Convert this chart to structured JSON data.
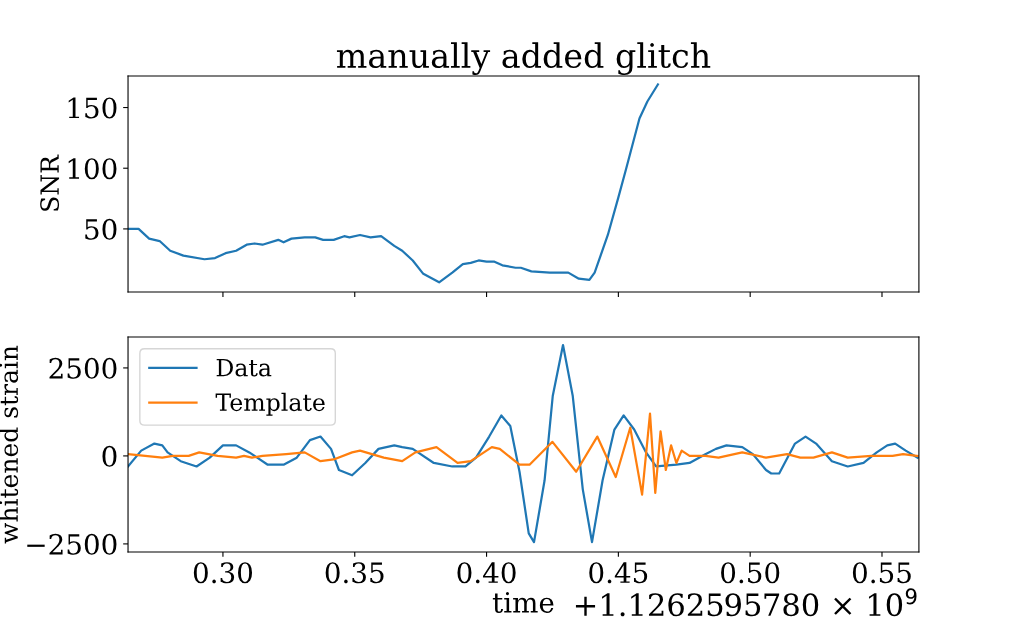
{
  "chart_data": [
    {
      "type": "line",
      "title": "manually added glitch",
      "ylabel": "SNR",
      "color": "#1f77b4",
      "x": [
        0.264,
        0.268,
        0.272,
        0.276,
        0.28,
        0.285,
        0.293,
        0.297,
        0.301,
        0.305,
        0.309,
        0.312,
        0.315,
        0.321,
        0.323,
        0.326,
        0.331,
        0.335,
        0.338,
        0.342,
        0.346,
        0.348,
        0.352,
        0.356,
        0.36,
        0.365,
        0.368,
        0.372,
        0.376,
        0.382,
        0.387,
        0.391,
        0.394,
        0.397,
        0.4,
        0.403,
        0.406,
        0.411,
        0.413,
        0.417,
        0.424,
        0.431,
        0.435,
        0.439,
        0.441,
        0.446,
        0.45,
        0.453,
        0.458,
        0.461,
        0.465
      ],
      "values": [
        50,
        50,
        42,
        40,
        32,
        28,
        25,
        26,
        30,
        32,
        37,
        38,
        37,
        41,
        39,
        42,
        43,
        43,
        41,
        41,
        44,
        43,
        45,
        43,
        44,
        36,
        32,
        24,
        13,
        6,
        14,
        21,
        22,
        24,
        23,
        23,
        20,
        18,
        18,
        15,
        14,
        14,
        9,
        8,
        14,
        45,
        76,
        100,
        141,
        155,
        169
      ],
      "xlim": [
        0.264,
        0.564
      ],
      "xticks": [
        0.3,
        0.35,
        0.4,
        0.45,
        0.5,
        0.55
      ],
      "ylim": [
        -2,
        176
      ],
      "yticks": [
        50,
        100,
        150
      ],
      "tick_labels": "y",
      "grid": false,
      "legend": false
    },
    {
      "type": "line",
      "xlabel": "time",
      "ylabel": "whitened strain",
      "legend": "top left",
      "grid": false,
      "xlim": [
        0.264,
        0.564
      ],
      "xticks": [
        {
          "value": 0.3,
          "label": "0.30"
        },
        {
          "value": 0.35,
          "label": "0.35"
        },
        {
          "value": 0.4,
          "label": "0.40"
        },
        {
          "value": 0.45,
          "label": "0.45"
        },
        {
          "value": 0.5,
          "label": "0.50"
        },
        {
          "value": 0.55,
          "label": "0.55"
        }
      ],
      "ylim": [
        -2730,
        3380
      ],
      "yticks": [
        {
          "value": -2500,
          "label": "−2500"
        },
        0,
        2500
      ],
      "annotations": [
        "+1.1262595780 × 10$^{9}$"
      ],
      "series": [
        {
          "name": "Data",
          "color": "#1f77b4",
          "x": [
            0.264,
            0.269,
            0.274,
            0.277,
            0.279,
            0.284,
            0.29,
            0.295,
            0.3,
            0.305,
            0.31,
            0.317,
            0.323,
            0.328,
            0.333,
            0.337,
            0.341,
            0.344,
            0.349,
            0.354,
            0.359,
            0.365,
            0.368,
            0.372,
            0.38,
            0.387,
            0.392,
            0.396,
            0.401,
            0.4056,
            0.409,
            0.4125,
            0.416,
            0.418,
            0.422,
            0.4251,
            0.429,
            0.4327,
            0.4365,
            0.44,
            0.444,
            0.4485,
            0.452,
            0.456,
            0.4605,
            0.4643,
            0.472,
            0.477,
            0.483,
            0.487,
            0.491,
            0.497,
            0.501,
            0.506,
            0.508,
            0.511,
            0.517,
            0.521,
            0.525,
            0.531,
            0.537,
            0.543,
            0.548,
            0.552,
            0.555,
            0.559,
            0.5635
          ],
          "values": [
            -300,
            150,
            350,
            300,
            100,
            -150,
            -300,
            -50,
            300,
            300,
            100,
            -250,
            -250,
            -50,
            450,
            550,
            200,
            -400,
            -550,
            -200,
            200,
            300,
            250,
            200,
            -200,
            -300,
            -300,
            -50,
            550,
            1150,
            850,
            -450,
            -2200,
            -2450,
            -700,
            1700,
            3150,
            1700,
            -950,
            -2450,
            -700,
            750,
            1150,
            750,
            100,
            -300,
            -250,
            -200,
            50,
            200,
            300,
            250,
            50,
            -400,
            -500,
            -500,
            350,
            550,
            350,
            -150,
            -300,
            -200,
            100,
            300,
            350,
            150,
            -50
          ]
        },
        {
          "name": "Template",
          "color": "#ff7f0e",
          "x": [
            0.264,
            0.277,
            0.281,
            0.287,
            0.291,
            0.298,
            0.305,
            0.308,
            0.311,
            0.315,
            0.324,
            0.331,
            0.337,
            0.342,
            0.349,
            0.352,
            0.361,
            0.368,
            0.373,
            0.381,
            0.389,
            0.394,
            0.402,
            0.405,
            0.4125,
            0.4163,
            0.425,
            0.434,
            0.442,
            0.449,
            0.4545,
            0.459,
            0.462,
            0.464,
            0.466,
            0.468,
            0.47,
            0.472,
            0.474,
            0.477,
            0.483,
            0.488,
            0.497,
            0.506,
            0.514,
            0.519,
            0.524,
            0.531,
            0.537,
            0.546,
            0.554,
            0.558,
            0.5635
          ],
          "values": [
            50,
            -50,
            0,
            0,
            100,
            0,
            -50,
            0,
            -50,
            0,
            50,
            100,
            -150,
            -100,
            100,
            150,
            -50,
            -150,
            100,
            250,
            -200,
            -150,
            250,
            200,
            -250,
            -250,
            400,
            -450,
            550,
            -600,
            800,
            -1100,
            1200,
            -1050,
            700,
            -400,
            300,
            -200,
            150,
            0,
            0,
            -50,
            100,
            -50,
            50,
            -50,
            -50,
            100,
            -50,
            0,
            0,
            50,
            0
          ]
        }
      ]
    }
  ]
}
